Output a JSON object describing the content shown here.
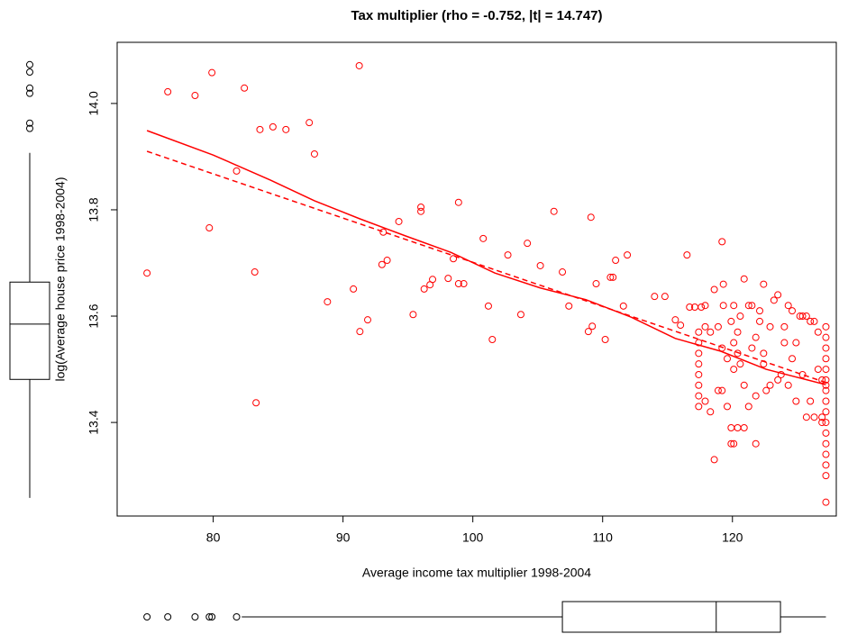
{
  "chart_data": {
    "type": "scatter",
    "title": "Tax multiplier (rho = -0.752, |t| = 14.747)",
    "x_label": "Average income tax multiplier 1998-2004",
    "y_label": "log(Average house price 1998-2004)",
    "xlim": [
      72.6,
      128.0
    ],
    "ylim": [
      13.224,
      14.115
    ],
    "xticks": [
      80,
      90,
      100,
      110,
      120
    ],
    "yticks": [
      {
        "value": 13.4,
        "label": "13.4"
      },
      {
        "value": 13.6,
        "label": "13.6"
      },
      {
        "value": 13.8,
        "label": "13.8"
      },
      {
        "value": 14.0,
        "label": "14.0"
      }
    ],
    "color": "#ff0000",
    "points": {
      "x": [
        74.9,
        76.5,
        78.6,
        79.9,
        79.7,
        82.4,
        81.8,
        83.2,
        83.3,
        83.6,
        84.6,
        85.6,
        87.4,
        87.8,
        88.8,
        90.8,
        91.25,
        91.3,
        91.9,
        93.0,
        93.4,
        93.1,
        94.3,
        95.4,
        96.0,
        96.0,
        96.25,
        96.7,
        96.9,
        98.1,
        98.5,
        98.9,
        98.9,
        99.3,
        100.8,
        101.2,
        101.5,
        102.7,
        103.7,
        104.2,
        105.2,
        106.25,
        106.9,
        107.4,
        108.9,
        109.2,
        109.1,
        109.5,
        110.2,
        110.6,
        110.8,
        111.0,
        111.6,
        111.9,
        114.0,
        114.8,
        115.6,
        116.0,
        116.5,
        116.7,
        117.1,
        117.6,
        117.4,
        117.4,
        117.4,
        117.4,
        117.4,
        117.4,
        117.4,
        117.4,
        117.9,
        117.9,
        117.9,
        118.3,
        118.3,
        118.6,
        118.6,
        118.9,
        118.9,
        119.2,
        119.2,
        119.2,
        119.3,
        119.3,
        119.6,
        119.6,
        119.9,
        119.9,
        119.9,
        120.1,
        120.1,
        120.1,
        120.1,
        120.4,
        120.4,
        120.4,
        120.6,
        120.6,
        120.9,
        120.9,
        120.9,
        121.25,
        121.25,
        121.5,
        121.5,
        121.8,
        121.8,
        121.8,
        122.1,
        122.1,
        122.4,
        122.4,
        122.4,
        122.6,
        122.9,
        122.9,
        123.2,
        123.5,
        123.5,
        123.75,
        124.0,
        124.0,
        124.3,
        124.3,
        124.6,
        124.6,
        124.9,
        124.9,
        125.2,
        125.4,
        125.4,
        125.7,
        125.7,
        126.0,
        126.0,
        126.3,
        126.3,
        126.6,
        126.6,
        126.9,
        126.9,
        126.9,
        127.2,
        127.2,
        127.2,
        127.2,
        127.2,
        127.2,
        127.2,
        127.2,
        127.2,
        127.2,
        127.2,
        127.2,
        127.2,
        127.2,
        127.2,
        127.2,
        127.2
      ],
      "y": [
        13.681,
        14.022,
        14.015,
        14.058,
        13.766,
        14.029,
        13.873,
        13.683,
        13.437,
        13.951,
        13.956,
        13.951,
        13.964,
        13.905,
        13.627,
        13.651,
        14.071,
        13.571,
        13.593,
        13.697,
        13.705,
        13.758,
        13.778,
        13.603,
        13.805,
        13.797,
        13.651,
        13.659,
        13.669,
        13.671,
        13.708,
        13.814,
        13.661,
        13.661,
        13.746,
        13.619,
        13.556,
        13.715,
        13.603,
        13.737,
        13.695,
        13.797,
        13.683,
        13.619,
        13.571,
        13.581,
        13.786,
        13.661,
        13.556,
        13.673,
        13.673,
        13.705,
        13.619,
        13.715,
        13.637,
        13.637,
        13.593,
        13.583,
        13.715,
        13.617,
        13.617,
        13.617,
        13.57,
        13.55,
        13.53,
        13.51,
        13.49,
        13.47,
        13.45,
        13.43,
        13.62,
        13.58,
        13.44,
        13.57,
        13.42,
        13.65,
        13.33,
        13.46,
        13.58,
        13.74,
        13.46,
        13.54,
        13.66,
        13.62,
        13.43,
        13.52,
        13.59,
        13.39,
        13.36,
        13.62,
        13.55,
        13.5,
        13.36,
        13.39,
        13.53,
        13.57,
        13.6,
        13.51,
        13.67,
        13.39,
        13.47,
        13.62,
        13.43,
        13.54,
        13.62,
        13.36,
        13.56,
        13.45,
        13.61,
        13.59,
        13.66,
        13.53,
        13.51,
        13.46,
        13.58,
        13.47,
        13.63,
        13.64,
        13.48,
        13.49,
        13.55,
        13.58,
        13.62,
        13.47,
        13.61,
        13.52,
        13.55,
        13.44,
        13.6,
        13.6,
        13.49,
        13.41,
        13.6,
        13.44,
        13.59,
        13.59,
        13.41,
        13.57,
        13.5,
        13.48,
        13.41,
        13.4,
        13.58,
        13.56,
        13.54,
        13.52,
        13.5,
        13.48,
        13.47,
        13.46,
        13.44,
        13.42,
        13.4,
        13.38,
        13.36,
        13.34,
        13.32,
        13.3,
        13.25
      ]
    },
    "fits": [
      {
        "style": "solid",
        "x": [
          74.9,
          80,
          84.4,
          87.8,
          91.3,
          94.8,
          98.3,
          101.7,
          105.2,
          108.7,
          112.2,
          115.6,
          119.1,
          122.6,
          127.2
        ],
        "y": [
          13.949,
          13.903,
          13.856,
          13.817,
          13.783,
          13.751,
          13.72,
          13.681,
          13.653,
          13.631,
          13.598,
          13.558,
          13.534,
          13.5,
          13.471
        ]
      },
      {
        "style": "dashed",
        "x": [
          74.9,
          127.2
        ],
        "y": [
          13.91,
          13.475
        ]
      }
    ],
    "y_boxplot": {
      "whisker_low": 13.258,
      "q1": 13.481,
      "median": 13.585,
      "q3": 13.664,
      "whisker_high": 13.907,
      "outliers": [
        14.073,
        14.059,
        14.029,
        14.019,
        13.963,
        13.953
      ]
    },
    "x_boxplot": {
      "whisker_low": 82.2,
      "q1": 106.9,
      "median": 118.75,
      "q3": 123.7,
      "whisker_high": 127.2,
      "outliers": [
        74.9,
        76.5,
        78.6,
        79.7,
        79.9,
        81.8
      ]
    }
  }
}
